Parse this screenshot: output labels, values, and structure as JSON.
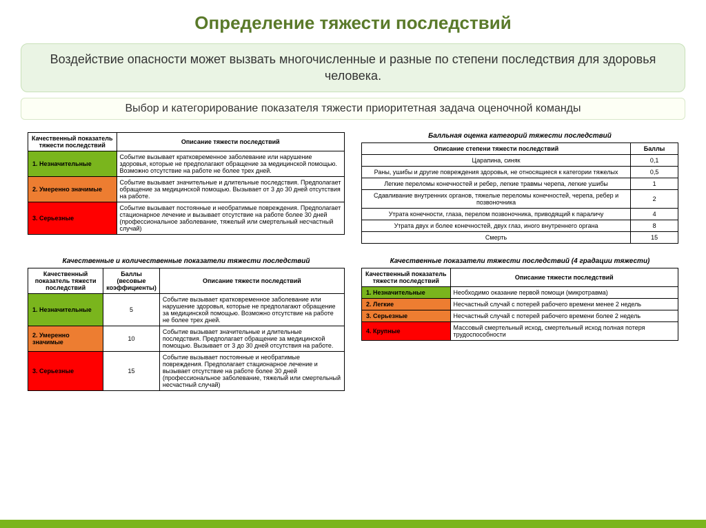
{
  "title": "Определение тяжести последствий",
  "banner1": "Воздействие опасности может вызвать многочисленные и разные по степени последствия для здоровья человека.",
  "banner2": "Выбор и категорирование показателя тяжести приоритетная задача оценочной команды",
  "colors": {
    "green": "#7ab51d",
    "orange": "#ed7d31",
    "red": "#ff0000",
    "accent_bar": "#7ab51d"
  },
  "table1": {
    "headers": [
      "Качественный показатель тяжести последствий",
      "Описание тяжести последствий"
    ],
    "col_widths": [
      "28%",
      "72%"
    ],
    "rows": [
      {
        "color": "#7ab51d",
        "label": "1. Незначительные",
        "desc": "Событие вызывает кратковременное заболевание или нарушение здоровья, которые не предполагают обращение за медицинской помощью. Возможно отсутствие на работе не более трех дней."
      },
      {
        "color": "#ed7d31",
        "label": "2. Умеренно значимые",
        "desc": "Событие вызывает значительные и длительные последствия. Предполагает обращение за медицинской помощью. Вызывает от 3 до 30 дней отсутствия на работе."
      },
      {
        "color": "#ff0000",
        "label": "3. Серьезные",
        "desc": "Событие вызывает постоянные и необратимые повреждения. Предполагает стационарное лечение и вызывает отсутствие на работе более 30 дней (профессиональное заболевание, тяжелый или смертельный несчастный случай)"
      }
    ]
  },
  "table2": {
    "caption": "Балльная оценка категорий тяжести последствий",
    "headers": [
      "Описание степени тяжести последствий",
      "Баллы"
    ],
    "col_widths": [
      "85%",
      "15%"
    ],
    "rows": [
      {
        "desc": "Царапина, синяк",
        "score": "0,1"
      },
      {
        "desc": "Раны, ушибы и другие повреждения здоровья, не относящиеся к категории тяжелых",
        "score": "0,5"
      },
      {
        "desc": "Легкие переломы конечностей и ребер, легкие травмы черепа, легкие ушибы",
        "score": "1"
      },
      {
        "desc": "Сдавливание внутренних органов, тяжелые переломы конечностей, черепа, ребер и позвоночника",
        "score": "2"
      },
      {
        "desc": "Утрата конечности, глаза, перелом позвоночника, приводящий к параличу",
        "score": "4"
      },
      {
        "desc": "Утрата двух и более конечностей, двух глаз, иного внутреннего органа",
        "score": "8"
      },
      {
        "desc": "Смерть",
        "score": "15"
      }
    ]
  },
  "table3": {
    "caption": "Качественные и количественные показатели тяжести последствий",
    "headers": [
      "Качественный показатель тяжести последствий",
      "Баллы (весовые коэффициенты)",
      "Описание тяжести последствий"
    ],
    "col_widths": [
      "24%",
      "16%",
      "60%"
    ],
    "rows": [
      {
        "color": "#7ab51d",
        "label": "1. Незначительные",
        "score": "5",
        "desc": "Событие вызывает кратковременное заболевание или нарушение здоровья, которые не предполагают обращение за медицинской помощью. Возможно отсутствие на работе не более трех дней."
      },
      {
        "color": "#ed7d31",
        "label": "2. Умеренно значимые",
        "score": "10",
        "desc": "Событие вызывает значительные и длительные последствия. Предполагает обращение за медицинской помощью. Вызывает от 3 до 30 дней отсутствия на работе."
      },
      {
        "color": "#ff0000",
        "label": "3. Серьезные",
        "score": "15",
        "desc": "Событие вызывает постоянные и необратимые повреждения. Предполагает стационарное лечение и вызывает отсутствие на работе более 30 дней (профессиональное заболевание, тяжелый или смертельный несчастный случай)"
      }
    ]
  },
  "table4": {
    "caption": "Качественные показатели тяжести последствий (4 градации тяжести)",
    "headers": [
      "Качественный показатель тяжести последствий",
      "Описание тяжести последствий"
    ],
    "col_widths": [
      "28%",
      "72%"
    ],
    "rows": [
      {
        "color": "#7ab51d",
        "label": "1. Незначительные",
        "desc": "Необходимо оказание первой помощи (микротравма)"
      },
      {
        "color": "#ed7d31",
        "label": "2. Легкие",
        "desc": "Несчастный случай с потерей рабочего времени менее 2 недель"
      },
      {
        "color": "#ed7d31",
        "label": "3. Серьезные",
        "desc": "Несчастный случай с потерей рабочего времени более 2 недель"
      },
      {
        "color": "#ff0000",
        "label": "4. Крупные",
        "desc": "Массовый смертельный исход, смертельный исход полная потеря трудоспособности"
      }
    ]
  }
}
